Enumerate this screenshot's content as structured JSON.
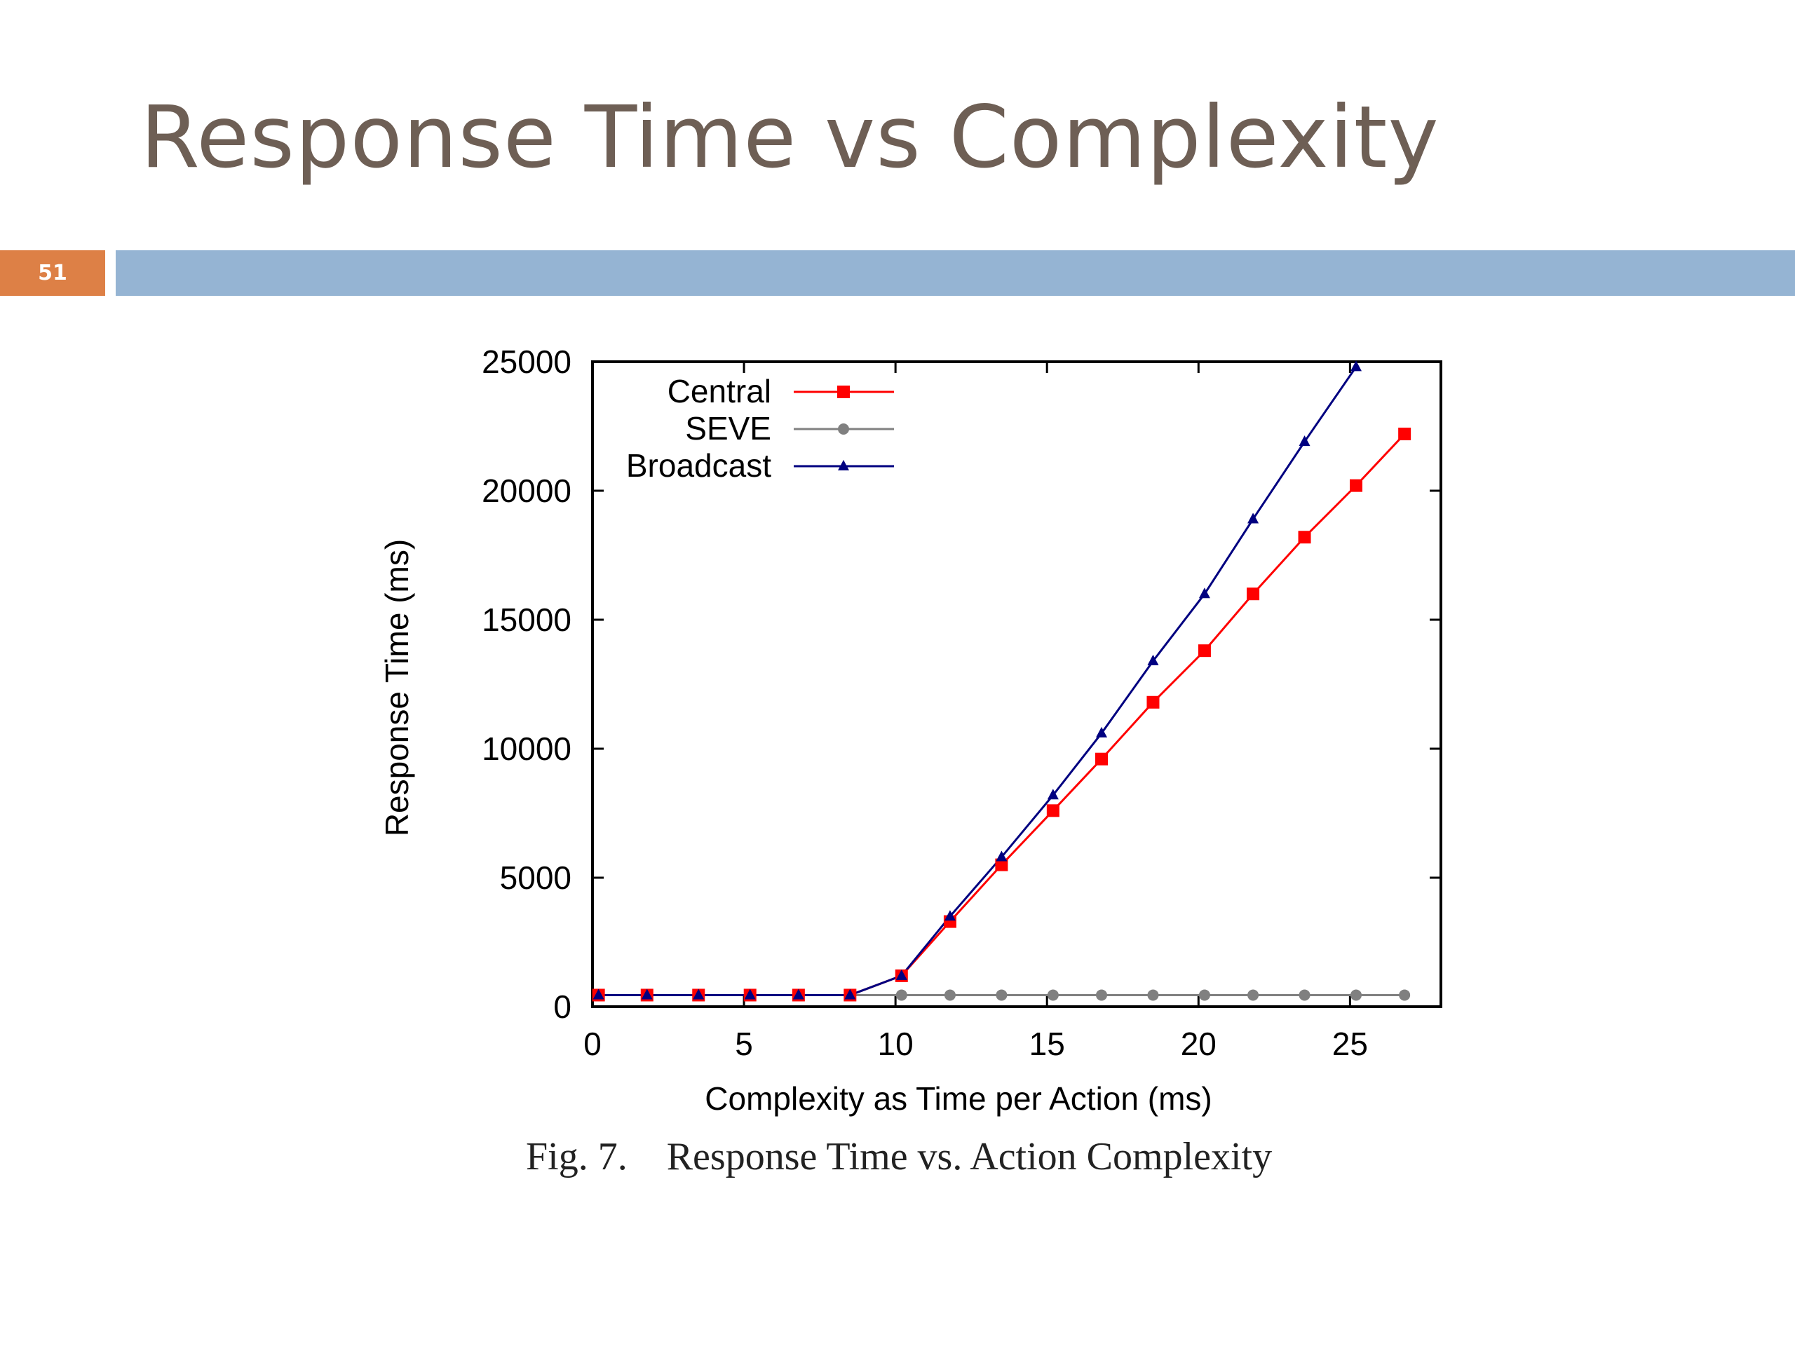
{
  "slide": {
    "title": "Response Time vs Complexity",
    "slide_number": "51",
    "caption": "Fig. 7.    Response Time vs. Action Complexity"
  },
  "colors": {
    "title": "#6e5f55",
    "number_box": "#dd8046",
    "title_bar": "#95b4d3"
  },
  "chart_data": {
    "type": "line",
    "xlabel": "Complexity as Time per Action (ms)",
    "ylabel": "Response Time (ms)",
    "xlim": [
      0,
      28
    ],
    "ylim": [
      0,
      25000
    ],
    "xticks": [
      0,
      5,
      10,
      15,
      20,
      25
    ],
    "yticks": [
      0,
      5000,
      10000,
      15000,
      20000,
      25000
    ],
    "legend_position": "top-left",
    "grid": false,
    "series": [
      {
        "name": "Central",
        "color": "#ff0000",
        "marker": "square",
        "x": [
          0.2,
          1.8,
          3.5,
          5.2,
          6.8,
          8.5,
          10.2,
          11.8,
          13.5,
          15.2,
          16.8,
          18.5,
          20.2,
          21.8,
          23.5,
          25.2,
          26.8
        ],
        "y": [
          450,
          450,
          450,
          450,
          450,
          450,
          1200,
          3300,
          5500,
          7600,
          9600,
          11800,
          13800,
          16000,
          18200,
          20200,
          22200
        ]
      },
      {
        "name": "SEVE",
        "color": "#808080",
        "marker": "circle",
        "x": [
          0.2,
          1.8,
          3.5,
          5.2,
          6.8,
          8.5,
          10.2,
          11.8,
          13.5,
          15.2,
          16.8,
          18.5,
          20.2,
          21.8,
          23.5,
          25.2,
          26.8
        ],
        "y": [
          450,
          450,
          450,
          450,
          450,
          450,
          450,
          450,
          450,
          450,
          450,
          450,
          450,
          450,
          450,
          450,
          450
        ]
      },
      {
        "name": "Broadcast",
        "color": "#000080",
        "marker": "triangle",
        "x": [
          0.2,
          1.8,
          3.5,
          5.2,
          6.8,
          8.5,
          10.2,
          11.8,
          13.5,
          15.2,
          16.8,
          18.5,
          20.2,
          21.8,
          23.5,
          25.2
        ],
        "y": [
          450,
          450,
          450,
          450,
          450,
          450,
          1200,
          3500,
          5800,
          8200,
          10600,
          13400,
          16000,
          18900,
          21900,
          24800
        ]
      }
    ]
  }
}
